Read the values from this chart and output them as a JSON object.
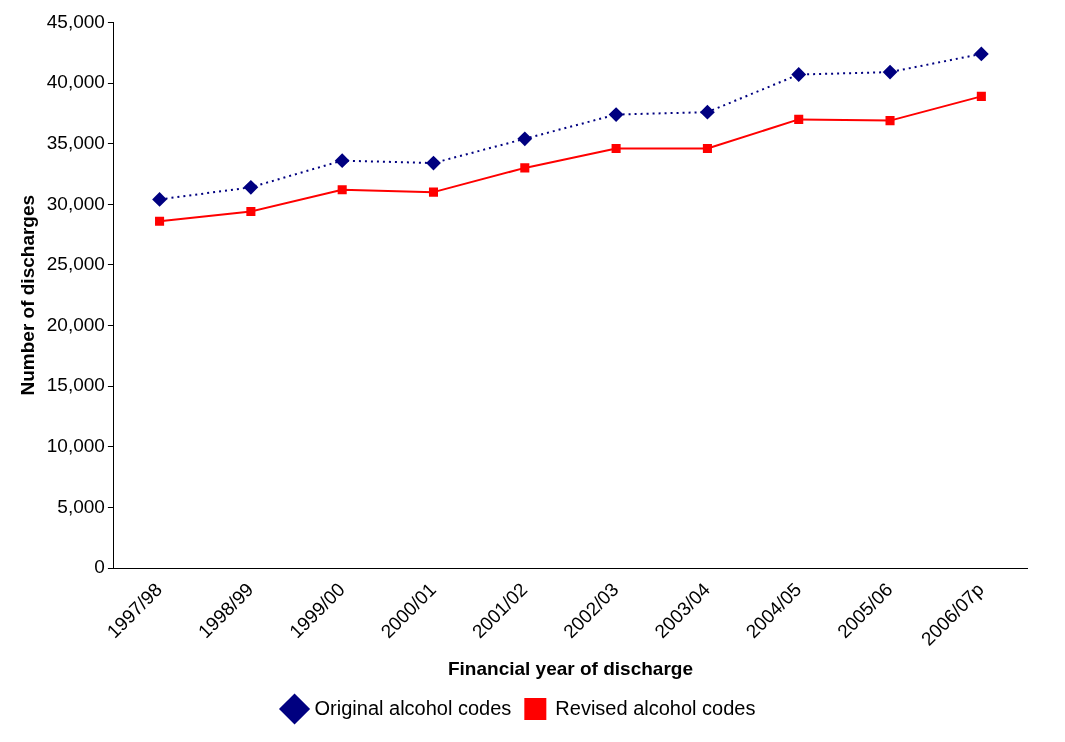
{
  "chart_data": {
    "type": "line",
    "xlabel": "Financial year of discharge",
    "ylabel": "Number of discharges",
    "categories": [
      "1997/98",
      "1998/99",
      "1999/00",
      "2000/01",
      "2001/02",
      "2002/03",
      "2003/04",
      "2004/05",
      "2005/06",
      "2006/07p"
    ],
    "series": [
      {
        "name": "Original alcohol codes",
        "color": "#000080",
        "marker": "diamond",
        "line_style": "dotted",
        "values": [
          30400,
          31400,
          33600,
          33400,
          35400,
          37400,
          37600,
          40700,
          40900,
          42400
        ]
      },
      {
        "name": "Revised alcohol codes",
        "color": "#ff0000",
        "marker": "square",
        "line_style": "solid",
        "values": [
          28600,
          29400,
          31200,
          31000,
          33000,
          34600,
          34600,
          37000,
          36900,
          38900
        ]
      }
    ],
    "ylim": [
      0,
      45000
    ],
    "yticks": [
      0,
      {
        "value": 5000,
        "label": "5,000"
      },
      {
        "value": 10000,
        "label": "10,000"
      },
      {
        "value": 15000,
        "label": "15,000"
      },
      {
        "value": 20000,
        "label": "20,000"
      },
      {
        "value": 25000,
        "label": "25,000"
      },
      {
        "value": 30000,
        "label": "30,000"
      },
      {
        "value": 35000,
        "label": "35,000"
      },
      {
        "value": 40000,
        "label": "40,000"
      },
      {
        "value": 45000,
        "label": "45,000"
      }
    ],
    "grid": false,
    "legend": "bottom"
  }
}
